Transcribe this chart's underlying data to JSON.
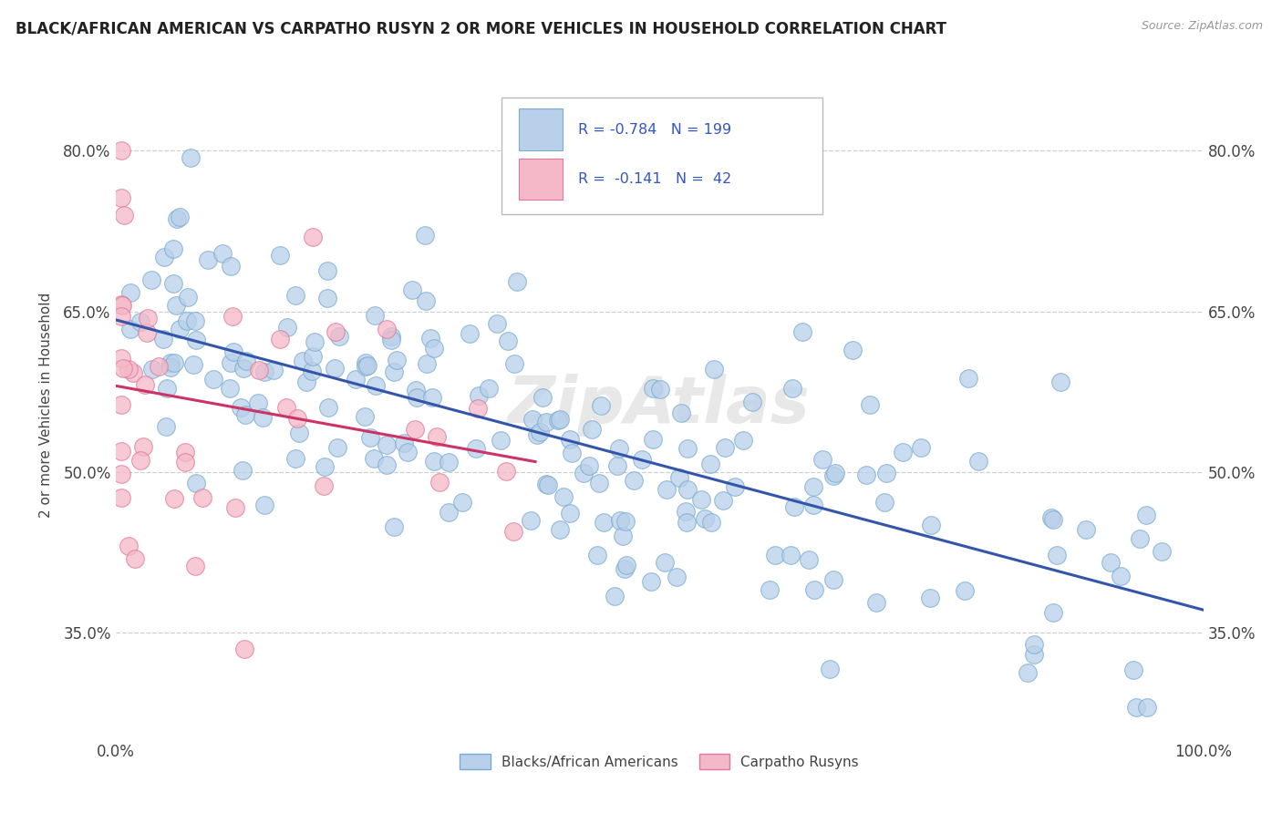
{
  "title": "BLACK/AFRICAN AMERICAN VS CARPATHO RUSYN 2 OR MORE VEHICLES IN HOUSEHOLD CORRELATION CHART",
  "source_text": "Source: ZipAtlas.com",
  "ylabel": "2 or more Vehicles in Household",
  "xlim": [
    0.0,
    1.0
  ],
  "ylim": [
    0.25,
    0.875
  ],
  "yticks": [
    0.35,
    0.5,
    0.65,
    0.8
  ],
  "ytick_labels": [
    "35.0%",
    "50.0%",
    "65.0%",
    "80.0%"
  ],
  "xtick_labels": [
    "0.0%",
    "100.0%"
  ],
  "legend_R1": "-0.784",
  "legend_N1": "199",
  "legend_R2": "-0.141",
  "legend_N2": "42",
  "blue_color": "#b8d0ea",
  "blue_edge": "#7aaad0",
  "pink_color": "#f5b8c8",
  "pink_edge": "#e07898",
  "line_blue": "#3355aa",
  "line_pink": "#cc3366",
  "background": "#ffffff",
  "grid_color": "#bbbbbb",
  "watermark": "ZipAtlas",
  "legend_text_color": "#3355cc"
}
